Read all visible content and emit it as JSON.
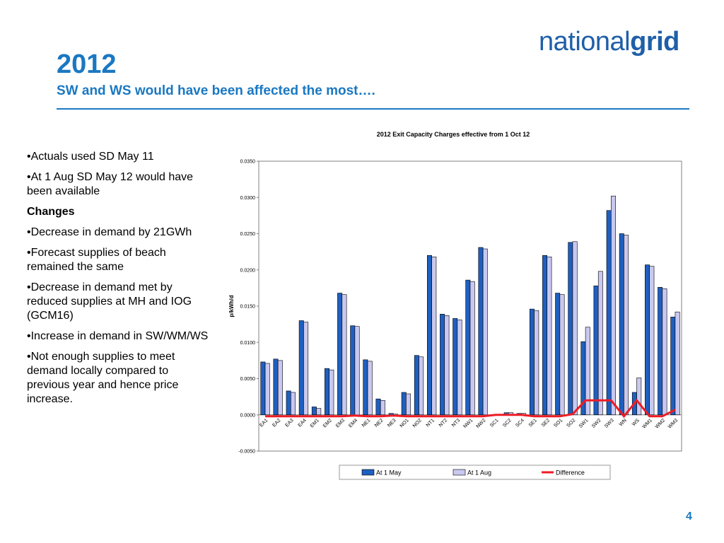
{
  "logo": {
    "light": "national",
    "bold": "grid"
  },
  "slide": {
    "title": "2012",
    "subtitle": "SW and WS would have been affected the most….",
    "page_number": "4"
  },
  "notes": [
    {
      "text": "•Actuals used SD May 11",
      "bold": false
    },
    {
      "text": "•At 1 Aug SD May 12 would have been available",
      "bold": false
    },
    {
      "text": "Changes",
      "bold": true
    },
    {
      "text": "•Decrease in demand by 21GWh",
      "bold": false
    },
    {
      "text": "•Forecast supplies of beach remained the same",
      "bold": false
    },
    {
      "text": "•Decrease in demand met by reduced supplies at MH and IOG (GCM16)",
      "bold": false
    },
    {
      "text": "•Increase in demand in SW/WM/WS",
      "bold": false
    },
    {
      "text": "•Not enough supplies to meet demand locally compared to previous year and hence price increase.",
      "bold": false
    }
  ],
  "chart_data": {
    "type": "bar",
    "title": "2012 Exit Capacity Charges effective from 1 Oct 12",
    "ylabel": "p/kWh/d",
    "xlabel": "",
    "ylim": [
      -0.005,
      0.035
    ],
    "yticks": [
      "-0.0050",
      "0.0000",
      "0.0050",
      "0.0100",
      "0.0150",
      "0.0200",
      "0.0250",
      "0.0300",
      "0.0350"
    ],
    "ytick_values": [
      -0.005,
      0,
      0.005,
      0.01,
      0.015,
      0.02,
      0.025,
      0.03,
      0.035
    ],
    "categories": [
      "EA1",
      "EA2",
      "EA3",
      "EA4",
      "EM1",
      "EM2",
      "EM3",
      "EM4",
      "NE1",
      "NE2",
      "NE3",
      "NO1",
      "NO2",
      "NT1",
      "NT2",
      "NT3",
      "NW1",
      "NW2",
      "SC1",
      "SC2",
      "SC4",
      "SE1",
      "SE2",
      "SO1",
      "SO2",
      "SW1",
      "SW2",
      "SW3",
      "WN",
      "WS",
      "WM1",
      "WM2",
      "WM3"
    ],
    "series": [
      {
        "name": "At 1 May",
        "kind": "bar",
        "color": "#1f5fbf",
        "values": [
          0.0073,
          0.0077,
          0.0033,
          0.013,
          0.0011,
          0.0064,
          0.0168,
          0.0123,
          0.0076,
          0.0022,
          0.0002,
          0.0031,
          0.0082,
          0.022,
          0.0139,
          0.0133,
          0.0186,
          0.0231,
          0.0,
          0.0003,
          0.0002,
          0.0146,
          0.022,
          0.0168,
          0.0238,
          0.0101,
          0.0178,
          0.0282,
          0.025,
          0.0031,
          0.0207,
          0.0176,
          0.0135
        ]
      },
      {
        "name": "At 1 Aug",
        "kind": "bar",
        "color": "#c8c8f0",
        "values": [
          0.0071,
          0.0075,
          0.0031,
          0.0128,
          0.0009,
          0.0062,
          0.0166,
          0.0122,
          0.0074,
          0.002,
          0.0001,
          0.0029,
          0.008,
          0.0218,
          0.0137,
          0.0131,
          0.0184,
          0.0229,
          0.0,
          0.0003,
          0.0002,
          0.0144,
          0.0218,
          0.0166,
          0.0239,
          0.0121,
          0.0198,
          0.0302,
          0.0248,
          0.0051,
          0.0205,
          0.0174,
          0.0142
        ]
      },
      {
        "name": "Difference",
        "kind": "line",
        "color": "#ee1c25",
        "values": [
          -0.0002,
          -0.0002,
          -0.0002,
          -0.0002,
          -0.0002,
          -0.0002,
          -0.0002,
          -0.0001,
          -0.0002,
          -0.0002,
          -0.0001,
          -0.0002,
          -0.0002,
          -0.0002,
          -0.0002,
          -0.0002,
          -0.0002,
          -0.0002,
          0.0,
          0.0,
          0.0,
          -0.0002,
          -0.0002,
          -0.0002,
          0.0001,
          0.002,
          0.002,
          0.002,
          -0.0002,
          0.002,
          -0.0002,
          -0.0002,
          0.0007
        ]
      }
    ],
    "legend": {
      "position": "bottom"
    },
    "grid": false
  }
}
